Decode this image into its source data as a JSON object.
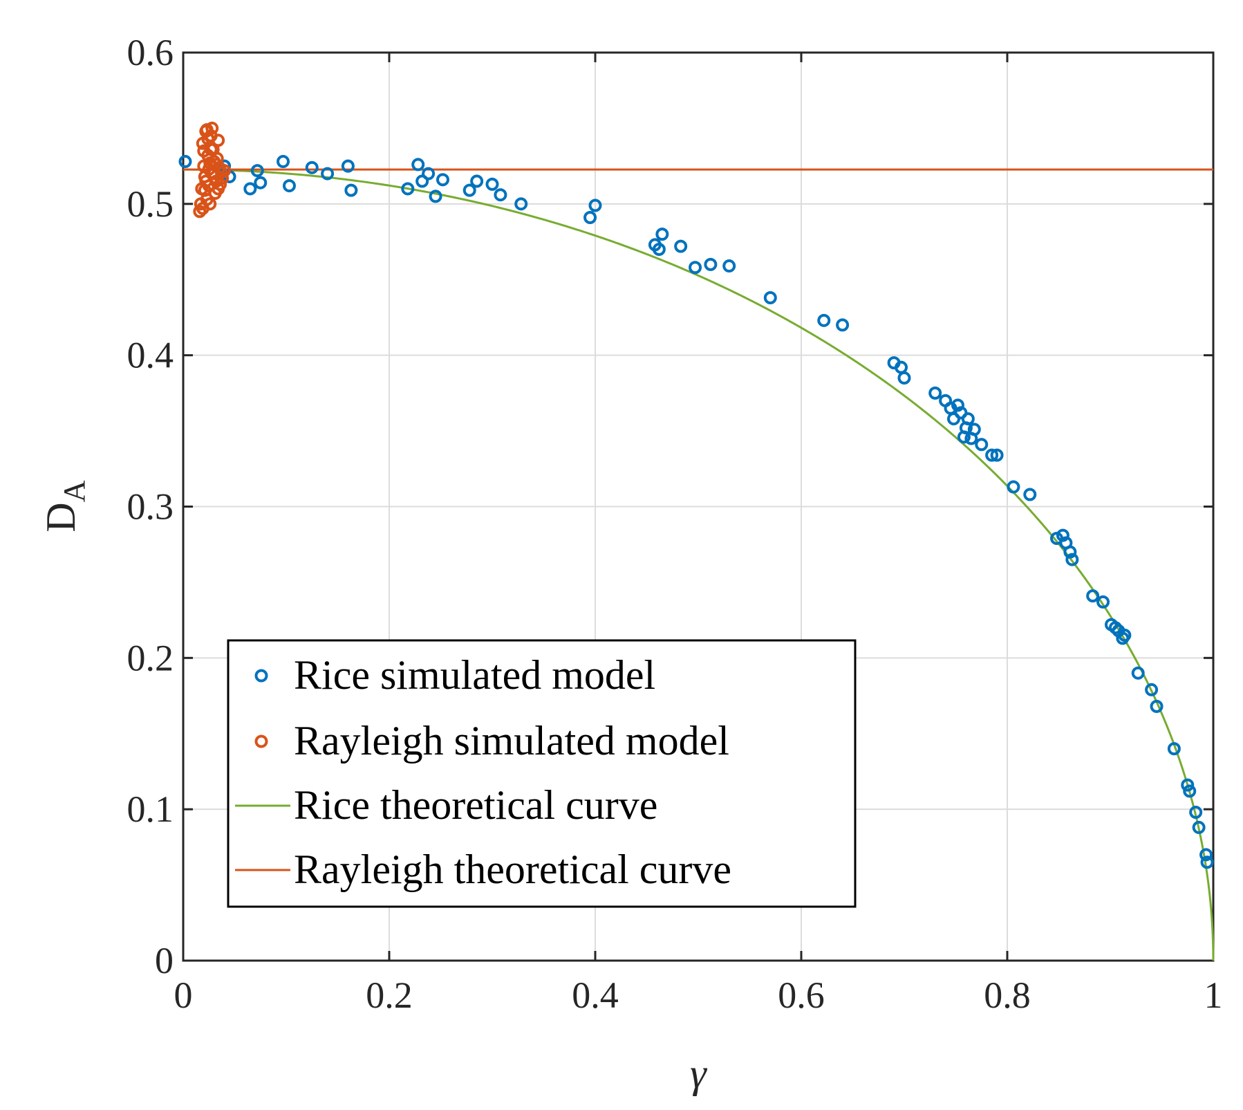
{
  "chart_data": {
    "type": "scatter",
    "title": "",
    "xlabel": "γ",
    "ylabel_main": "D",
    "ylabel_sub": "A",
    "xlim": [
      0,
      1
    ],
    "ylim": [
      0,
      0.6
    ],
    "xticks": [
      0,
      0.2,
      0.4,
      0.6,
      0.8,
      1
    ],
    "xtick_labels": [
      "0",
      "0.2",
      "0.4",
      "0.6",
      "0.8",
      "1"
    ],
    "yticks": [
      0,
      0.1,
      0.2,
      0.3,
      0.4,
      0.5,
      0.6
    ],
    "ytick_labels": [
      "0",
      "0.1",
      "0.2",
      "0.3",
      "0.4",
      "0.5",
      "0.6"
    ],
    "grid": true,
    "legend_position": "lower-left",
    "series": [
      {
        "name": "Rice simulated model",
        "kind": "scatter",
        "color": "#0072BD",
        "points": [
          [
            0.002,
            0.528
          ],
          [
            0.04,
            0.525
          ],
          [
            0.045,
            0.518
          ],
          [
            0.065,
            0.51
          ],
          [
            0.072,
            0.522
          ],
          [
            0.075,
            0.514
          ],
          [
            0.097,
            0.528
          ],
          [
            0.103,
            0.512
          ],
          [
            0.125,
            0.524
          ],
          [
            0.14,
            0.52
          ],
          [
            0.16,
            0.525
          ],
          [
            0.163,
            0.509
          ],
          [
            0.218,
            0.51
          ],
          [
            0.228,
            0.526
          ],
          [
            0.232,
            0.515
          ],
          [
            0.238,
            0.52
          ],
          [
            0.245,
            0.505
          ],
          [
            0.252,
            0.516
          ],
          [
            0.278,
            0.509
          ],
          [
            0.285,
            0.515
          ],
          [
            0.3,
            0.513
          ],
          [
            0.308,
            0.506
          ],
          [
            0.328,
            0.5
          ],
          [
            0.395,
            0.491
          ],
          [
            0.4,
            0.499
          ],
          [
            0.458,
            0.473
          ],
          [
            0.462,
            0.47
          ],
          [
            0.465,
            0.48
          ],
          [
            0.483,
            0.472
          ],
          [
            0.497,
            0.458
          ],
          [
            0.512,
            0.46
          ],
          [
            0.53,
            0.459
          ],
          [
            0.57,
            0.438
          ],
          [
            0.622,
            0.423
          ],
          [
            0.64,
            0.42
          ],
          [
            0.69,
            0.395
          ],
          [
            0.697,
            0.392
          ],
          [
            0.7,
            0.385
          ],
          [
            0.73,
            0.375
          ],
          [
            0.74,
            0.37
          ],
          [
            0.745,
            0.365
          ],
          [
            0.748,
            0.358
          ],
          [
            0.752,
            0.367
          ],
          [
            0.755,
            0.362
          ],
          [
            0.758,
            0.346
          ],
          [
            0.76,
            0.352
          ],
          [
            0.762,
            0.358
          ],
          [
            0.765,
            0.345
          ],
          [
            0.768,
            0.351
          ],
          [
            0.775,
            0.341
          ],
          [
            0.785,
            0.334
          ],
          [
            0.79,
            0.334
          ],
          [
            0.806,
            0.313
          ],
          [
            0.822,
            0.308
          ],
          [
            0.848,
            0.279
          ],
          [
            0.854,
            0.281
          ],
          [
            0.857,
            0.276
          ],
          [
            0.861,
            0.27
          ],
          [
            0.863,
            0.265
          ],
          [
            0.883,
            0.241
          ],
          [
            0.893,
            0.237
          ],
          [
            0.901,
            0.222
          ],
          [
            0.905,
            0.22
          ],
          [
            0.908,
            0.218
          ],
          [
            0.912,
            0.213
          ],
          [
            0.914,
            0.215
          ],
          [
            0.927,
            0.19
          ],
          [
            0.94,
            0.179
          ],
          [
            0.945,
            0.168
          ],
          [
            0.962,
            0.14
          ],
          [
            0.975,
            0.116
          ],
          [
            0.977,
            0.112
          ],
          [
            0.983,
            0.098
          ],
          [
            0.986,
            0.088
          ],
          [
            0.993,
            0.07
          ],
          [
            0.994,
            0.065
          ]
        ]
      },
      {
        "name": "Rayleigh simulated model",
        "kind": "scatter",
        "color": "#D95319",
        "points": [
          [
            0.016,
            0.495
          ],
          [
            0.018,
            0.51
          ],
          [
            0.02,
            0.525
          ],
          [
            0.019,
            0.54
          ],
          [
            0.022,
            0.548
          ],
          [
            0.024,
            0.532
          ],
          [
            0.021,
            0.518
          ],
          [
            0.023,
            0.503
          ],
          [
            0.025,
            0.512
          ],
          [
            0.026,
            0.527
          ],
          [
            0.027,
            0.545
          ],
          [
            0.028,
            0.55
          ],
          [
            0.029,
            0.536
          ],
          [
            0.03,
            0.52
          ],
          [
            0.031,
            0.507
          ],
          [
            0.032,
            0.515
          ],
          [
            0.033,
            0.53
          ],
          [
            0.034,
            0.542
          ],
          [
            0.035,
            0.524
          ],
          [
            0.036,
            0.513
          ],
          [
            0.037,
            0.521
          ],
          [
            0.038,
            0.517
          ],
          [
            0.04,
            0.522
          ],
          [
            0.017,
            0.5
          ],
          [
            0.02,
            0.535
          ],
          [
            0.022,
            0.515
          ],
          [
            0.024,
            0.543
          ],
          [
            0.026,
            0.5
          ],
          [
            0.028,
            0.52
          ],
          [
            0.03,
            0.528
          ],
          [
            0.025,
            0.523
          ],
          [
            0.021,
            0.509
          ],
          [
            0.027,
            0.536
          ],
          [
            0.032,
            0.526
          ],
          [
            0.019,
            0.497
          ],
          [
            0.023,
            0.549
          ],
          [
            0.034,
            0.51
          ]
        ]
      },
      {
        "name": "Rice theoretical curve",
        "kind": "line",
        "color": "#77AC30",
        "formula": "0.5227*sqrt(1-x^2)"
      },
      {
        "name": "Rayleigh theoretical curve",
        "kind": "line",
        "color": "#D95319",
        "constant": 0.5227
      }
    ]
  }
}
